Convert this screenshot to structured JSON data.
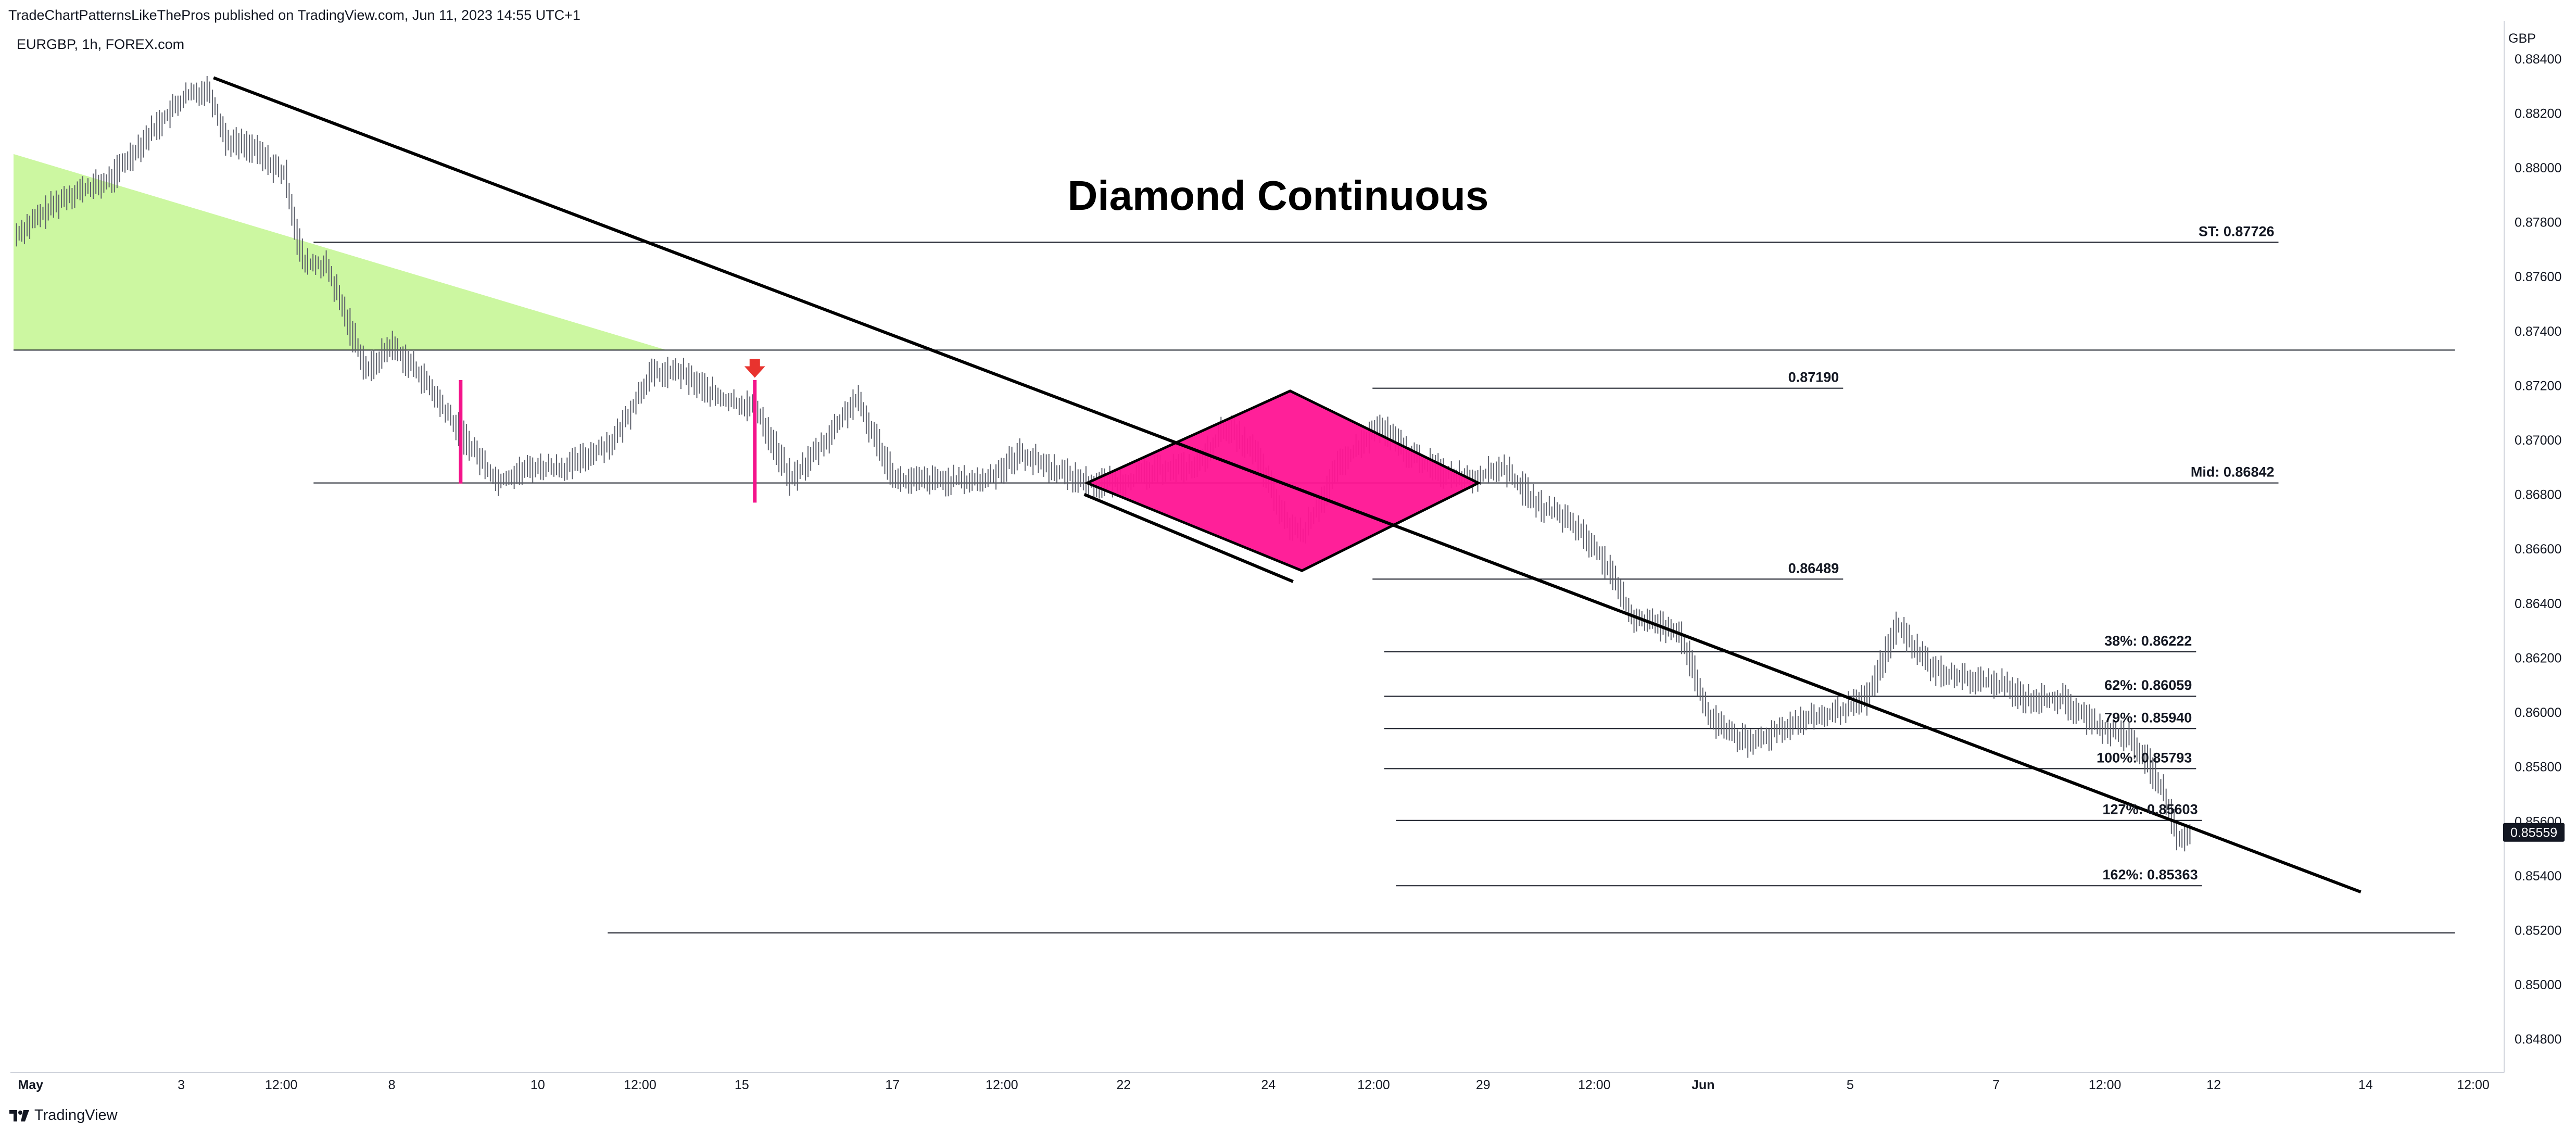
{
  "header": {
    "published_by": "TradeChartPatternsLikeThePros published on TradingView.com, Jun 11, 2023 14:55 UTC+1",
    "symbol_line": "EURGBP, 1h, FOREX.com",
    "currency": "GBP",
    "brand": "TradingView"
  },
  "chart_data": {
    "type": "line",
    "title": "Diamond Continuous",
    "xlabel": "",
    "ylabel": "",
    "ylim": [
      0.847,
      0.8852
    ],
    "ytick_labels": [
      "0.88400",
      "0.88200",
      "0.88000",
      "0.87800",
      "0.87600",
      "0.87400",
      "0.87200",
      "0.87000",
      "0.86800",
      "0.86600",
      "0.86400",
      "0.86200",
      "0.86000",
      "0.85800",
      "0.85600",
      "0.85400",
      "0.85200",
      "0.85000",
      "0.84800"
    ],
    "ytick_values": [
      0.884,
      0.882,
      0.88,
      0.878,
      0.876,
      0.874,
      0.872,
      0.87,
      0.868,
      0.866,
      0.864,
      0.862,
      0.86,
      0.858,
      0.856,
      0.854,
      0.852,
      0.85,
      0.848
    ],
    "xlim": [
      0.0,
      42.1
    ],
    "xtick_labels": [
      "May",
      "3",
      "12:00",
      "8",
      "10",
      "12:00",
      "15",
      "17",
      "12:00",
      "22",
      "24",
      "12:00",
      "29",
      "12:00",
      "Jun",
      "5",
      "7",
      "12:00",
      "12",
      "14",
      "12:00"
    ],
    "xtick_positions": [
      0.29,
      2.85,
      4.55,
      6.43,
      8.91,
      10.65,
      12.38,
      14.94,
      16.8,
      18.87,
      21.33,
      23.12,
      24.98,
      26.87,
      28.72,
      31.22,
      33.7,
      35.55,
      37.4,
      39.98,
      41.81
    ],
    "last_price": "0.85559",
    "last_price_value": 0.85559,
    "series": [
      {
        "x": [
          0.0,
          0.9,
          1.6,
          2.4,
          2.9,
          3.3,
          3.6,
          4.0,
          4.6,
          4.9,
          5.3,
          5.6,
          6.0,
          6.4,
          6.9,
          7.5,
          8.2,
          8.8,
          9.4,
          10.2,
          10.8,
          11.3,
          12.0,
          12.6,
          13.2,
          13.8,
          14.3,
          15.0,
          15.8,
          16.5,
          17.1,
          17.8,
          18.3,
          18.9,
          19.6,
          20.1,
          20.6,
          21.1,
          21.6,
          21.9,
          22.5,
          23.2,
          23.7,
          24.3,
          24.8,
          25.3,
          25.9,
          26.4,
          26.9,
          27.5,
          28.3,
          28.8,
          29.5,
          30.2,
          30.9,
          31.5,
          32.0,
          32.6,
          33.2,
          33.8,
          34.2,
          34.8,
          35.4,
          35.9,
          36.2,
          36.5,
          36.8,
          37.0
        ],
        "y": [
          0.8775,
          0.879,
          0.8795,
          0.8815,
          0.8826,
          0.8829,
          0.881,
          0.8808,
          0.8797,
          0.8765,
          0.8764,
          0.8747,
          0.8725,
          0.8735,
          0.8724,
          0.8705,
          0.8685,
          0.869,
          0.869,
          0.87,
          0.8724,
          0.8725,
          0.8715,
          0.8712,
          0.8685,
          0.87,
          0.8715,
          0.8685,
          0.8685,
          0.8685,
          0.8695,
          0.8688,
          0.8684,
          0.8685,
          0.869,
          0.869,
          0.8705,
          0.8695,
          0.867,
          0.8665,
          0.869,
          0.8705,
          0.8695,
          0.8688,
          0.8686,
          0.869,
          0.8676,
          0.8671,
          0.866,
          0.8635,
          0.863,
          0.8598,
          0.8588,
          0.8596,
          0.8599,
          0.8605,
          0.8632,
          0.8616,
          0.8612,
          0.861,
          0.8605,
          0.8605,
          0.8595,
          0.8591,
          0.8584,
          0.8572,
          0.8552,
          0.8556
        ]
      }
    ],
    "diamond": {
      "x": [
        18.25,
        21.7,
        24.9,
        21.9
      ],
      "y": [
        0.86842,
        0.8718,
        0.86842,
        0.8652
      ]
    },
    "green_wedge": {
      "x": [
        0.0,
        0.0,
        11.1
      ],
      "y": [
        0.8805,
        0.8733,
        0.8733
      ]
    },
    "trendlines": [
      {
        "x": [
          3.4,
          39.9
        ],
        "y": [
          0.8833,
          0.8534
        ]
      },
      {
        "x": [
          18.2,
          21.75
        ],
        "y": [
          0.868,
          0.8648
        ]
      }
    ],
    "horizontal_lines": [
      {
        "label": "ST: 0.87726",
        "value": 0.87726,
        "x": [
          5.1,
          38.5
        ]
      },
      {
        "label": "",
        "value": 0.8733,
        "x": [
          0.0,
          41.5
        ]
      },
      {
        "label": "0.87190",
        "value": 0.8719,
        "x": [
          23.1,
          31.1
        ]
      },
      {
        "label": "Mid: 0.86842",
        "value": 0.86842,
        "x": [
          5.1,
          38.5
        ]
      },
      {
        "label": "0.86489",
        "value": 0.86489,
        "x": [
          23.1,
          31.1
        ]
      },
      {
        "label": "38%: 0.86222",
        "value": 0.86222,
        "x": [
          23.3,
          37.1
        ]
      },
      {
        "label": "62%: 0.86059",
        "value": 0.86059,
        "x": [
          23.3,
          37.1
        ]
      },
      {
        "label": "79%: 0.85940",
        "value": 0.8594,
        "x": [
          23.3,
          37.1
        ]
      },
      {
        "label": "100%: 0.85793",
        "value": 0.85793,
        "x": [
          23.3,
          37.1
        ]
      },
      {
        "label": "127%: 0.85603",
        "value": 0.85603,
        "x": [
          23.5,
          37.2
        ]
      },
      {
        "label": "162%: 0.85363",
        "value": 0.85363,
        "x": [
          23.5,
          37.2
        ]
      },
      {
        "label": "",
        "value": 0.8519,
        "x": [
          10.1,
          41.5
        ]
      }
    ],
    "markers": [
      {
        "type": "pink-bar",
        "x": 7.6,
        "y": [
          0.8684,
          0.8722
        ]
      },
      {
        "type": "pink-bar",
        "x": 12.6,
        "y": [
          0.8677,
          0.8722
        ]
      },
      {
        "type": "red-arrow",
        "x": 12.6,
        "y": 0.8724
      }
    ]
  }
}
